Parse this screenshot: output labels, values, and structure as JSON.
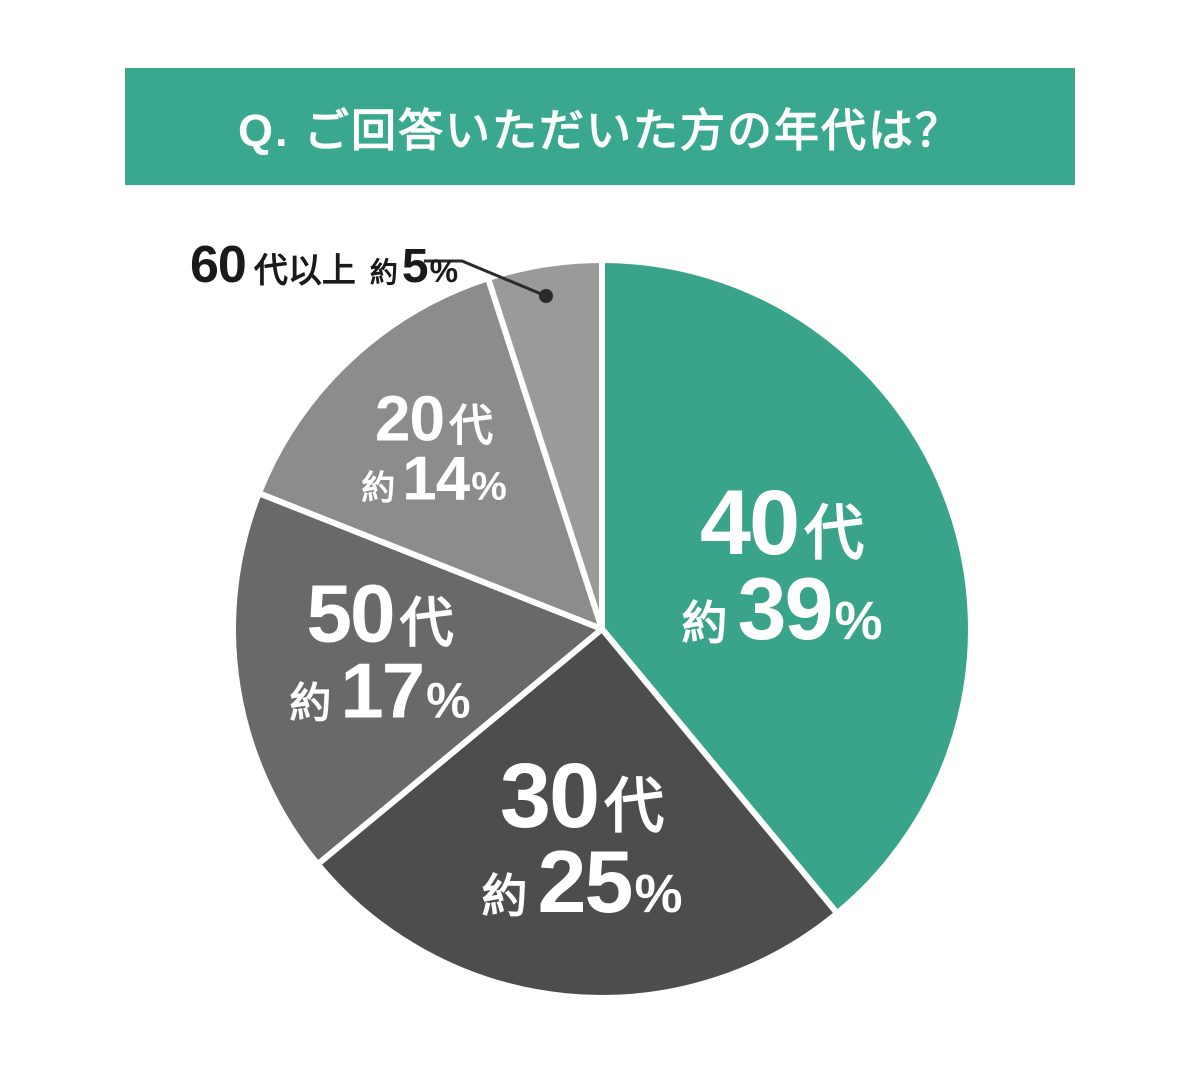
{
  "page": {
    "background_color": "#FFFFFF"
  },
  "banner": {
    "title": "Q. ご回答いただいた方の年代は？",
    "bg_color": "#3AA88E",
    "text_color": "#FFFFFF"
  },
  "chart_data": {
    "type": "pie",
    "title": "Q. ご回答いただいた方の年代は？",
    "unit": "%",
    "direction": "clockwise",
    "start_angle_deg": 0,
    "values_are_approximate": true,
    "slice_border_color": "#FFFFFF",
    "leader_line_color": "#2B2B2B",
    "segments": [
      {
        "label": "40代",
        "value": 39,
        "value_label": "約39%",
        "color": "#39A489",
        "label_color": "#FFFFFF",
        "num": "40",
        "suffix": "代",
        "approx": "約",
        "pct": "39",
        "pct_sign": "%",
        "label_placement": "inside"
      },
      {
        "label": "30代",
        "value": 25,
        "value_label": "約25%",
        "color": "#4D4D4D",
        "label_color": "#FFFFFF",
        "num": "30",
        "suffix": "代",
        "approx": "約",
        "pct": "25",
        "pct_sign": "%",
        "label_placement": "inside"
      },
      {
        "label": "50代",
        "value": 17,
        "value_label": "約17%",
        "color": "#696969",
        "label_color": "#FFFFFF",
        "num": "50",
        "suffix": "代",
        "approx": "約",
        "pct": "17",
        "pct_sign": "%",
        "label_placement": "inside"
      },
      {
        "label": "20代",
        "value": 14,
        "value_label": "約14%",
        "color": "#8C8C8C",
        "label_color": "#FFFFFF",
        "num": "20",
        "suffix": "代",
        "approx": "約",
        "pct": "14",
        "pct_sign": "%",
        "label_placement": "inside"
      },
      {
        "label": "60代以上",
        "value": 5,
        "value_label": "約5%",
        "color": "#9A9A9A",
        "label_color": "#1A1A1A",
        "num": "60",
        "suffix": "代以上",
        "approx": "約",
        "pct": "5",
        "pct_sign": "%",
        "label_placement": "outside-callout"
      }
    ]
  }
}
